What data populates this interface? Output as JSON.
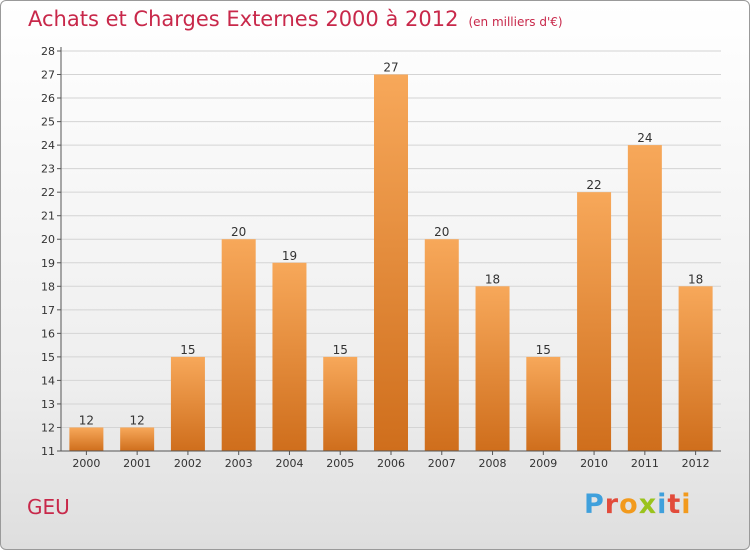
{
  "header": {
    "title": "Achats et Charges Externes 2000 à 2012",
    "subtitle": "(en milliers d'€)"
  },
  "footer": {
    "place": "GEU",
    "brand": "Proxiti"
  },
  "colors": {
    "title": "#c8284a",
    "bar_light": "#f7a85a",
    "bar_dark": "#cf6e1c",
    "grid": "#d4d4d4",
    "axis": "#555555"
  },
  "chart_data": {
    "type": "bar",
    "categories": [
      "2000",
      "2001",
      "2002",
      "2003",
      "2004",
      "2005",
      "2006",
      "2007",
      "2008",
      "2009",
      "2010",
      "2011",
      "2012"
    ],
    "values": [
      12,
      12,
      15,
      20,
      19,
      15,
      27,
      20,
      18,
      15,
      22,
      24,
      18
    ],
    "ylim": [
      11,
      28
    ],
    "yticks": [
      11,
      12,
      13,
      14,
      15,
      16,
      17,
      18,
      19,
      20,
      21,
      22,
      23,
      24,
      25,
      26,
      27,
      28
    ],
    "grid": true,
    "legend": "none"
  }
}
